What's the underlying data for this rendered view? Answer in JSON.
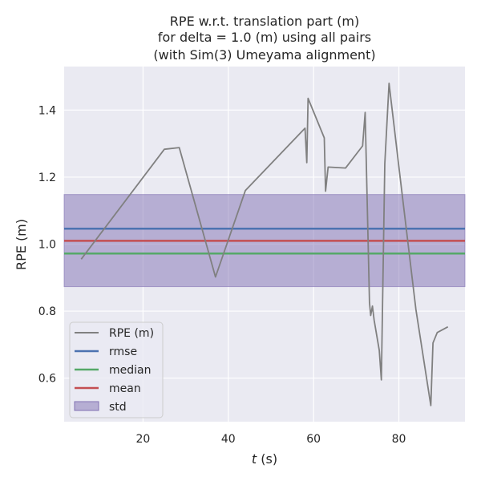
{
  "chart_data": {
    "type": "line",
    "title_lines": [
      "RPE w.r.t. translation part (m)",
      "for delta = 1.0 (m) using all pairs",
      "(with Sim(3) Umeyama alignment)"
    ],
    "xlabel_italic": "t",
    "xlabel_suffix": " (s)",
    "ylabel": "RPE (m)",
    "xlim": [
      1.5,
      95.5
    ],
    "ylim": [
      0.47,
      1.53
    ],
    "x_ticks": [
      20,
      40,
      60,
      80
    ],
    "y_ticks": [
      0.6,
      0.8,
      1.0,
      1.2,
      1.4
    ],
    "x_tick_labels": [
      "20",
      "40",
      "60",
      "80"
    ],
    "y_tick_labels": [
      "0.6",
      "0.8",
      "1.0",
      "1.2",
      "1.4"
    ],
    "grid": true,
    "legend_position": "lower-left",
    "series": [
      {
        "name": "RPE (m)",
        "color": "#808080",
        "x": [
          5.5,
          25.0,
          28.5,
          37.0,
          44.0,
          58.0,
          58.4,
          58.7,
          62.5,
          62.8,
          63.4,
          67.5,
          71.5,
          72.1,
          73.1,
          73.4,
          73.8,
          74.2,
          74.8,
          75.4,
          75.9,
          76.7,
          77.7,
          80.0,
          84.0,
          87.5,
          88.0,
          89.0,
          91.5
        ],
        "y": [
          0.955,
          1.283,
          1.288,
          0.902,
          1.16,
          1.346,
          1.243,
          1.435,
          1.317,
          1.158,
          1.23,
          1.227,
          1.293,
          1.393,
          0.825,
          0.787,
          0.815,
          0.773,
          0.728,
          0.683,
          0.595,
          1.24,
          1.48,
          1.23,
          0.805,
          0.518,
          0.705,
          0.736,
          0.753
        ]
      }
    ],
    "stats": {
      "rmse": 1.046,
      "median": 0.972,
      "mean": 1.01,
      "std_band": [
        0.873,
        1.148
      ]
    },
    "colors": {
      "rmse": "#4c72b0",
      "median": "#55a868",
      "mean": "#c44e52",
      "std": "#8172b3",
      "axes_bg": "#eaeaf2",
      "grid": "#ffffff"
    },
    "legend": {
      "rpe": "RPE (m)",
      "rmse": "rmse",
      "median": "median",
      "mean": "mean",
      "std": "std"
    }
  }
}
